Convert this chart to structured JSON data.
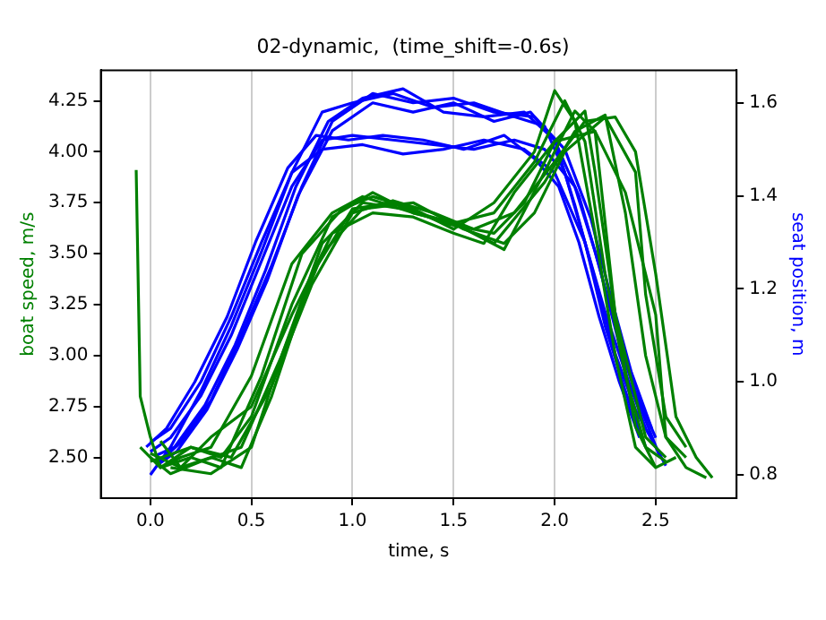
{
  "chart_data": {
    "type": "line",
    "title": "02-dynamic,  (time_shift=-0.6s)",
    "xlabel": "time, s",
    "ylabel": "boat speed, m/s",
    "y2label": "seat position, m",
    "xlim": [
      -0.245,
      2.9
    ],
    "xticks": [
      {
        "value": 0,
        "label": "0.0"
      },
      {
        "value": 0.5,
        "label": "0.5"
      },
      {
        "value": 1,
        "label": "1.0"
      },
      {
        "value": 1.5,
        "label": "1.5"
      },
      {
        "value": 2,
        "label": "2.0"
      },
      {
        "value": 2.5,
        "label": "2.5"
      }
    ],
    "ylim": [
      2.3,
      4.4
    ],
    "yticks": [
      {
        "value": 2.5,
        "label": "2.50"
      },
      {
        "value": 2.75,
        "label": "2.75"
      },
      {
        "value": 3,
        "label": "3.00"
      },
      {
        "value": 3.25,
        "label": "3.25"
      },
      {
        "value": 3.5,
        "label": "3.50"
      },
      {
        "value": 3.75,
        "label": "3.75"
      },
      {
        "value": 4,
        "label": "4.00"
      },
      {
        "value": 4.25,
        "label": "4.25"
      }
    ],
    "y2lim": [
      0.75,
      1.67
    ],
    "y2ticks": [
      {
        "value": 0.8,
        "label": "0.8"
      },
      {
        "value": 1,
        "label": "1.0"
      },
      {
        "value": 1.2,
        "label": "1.2"
      },
      {
        "value": 1.4,
        "label": "1.4"
      },
      {
        "value": 1.6,
        "label": "1.6"
      }
    ],
    "grid": "x",
    "legend": false,
    "marker": "none",
    "line_style": "solid",
    "series": [
      {
        "color": "#008000",
        "x": [
          -0.07,
          -0.05,
          0.0,
          0.05,
          0.15,
          0.3,
          0.5,
          0.7,
          0.9,
          1.05,
          1.3,
          1.5,
          1.7,
          1.9,
          2.05,
          2.15,
          2.25,
          2.35,
          2.45,
          2.55
        ],
        "values": [
          3.91,
          2.8,
          2.6,
          2.45,
          2.5,
          2.55,
          2.9,
          3.45,
          3.7,
          3.78,
          3.7,
          3.65,
          3.7,
          3.95,
          4.25,
          4.05,
          3.4,
          2.9,
          2.55,
          2.48
        ]
      },
      {
        "color": "#008000",
        "x": [
          -0.05,
          0.05,
          0.2,
          0.35,
          0.55,
          0.75,
          0.95,
          1.1,
          1.3,
          1.5,
          1.7,
          1.9,
          2.0,
          2.1,
          2.2,
          2.3,
          2.4,
          2.5,
          2.6
        ],
        "values": [
          2.55,
          2.45,
          2.5,
          2.45,
          2.9,
          3.5,
          3.72,
          3.78,
          3.72,
          3.62,
          3.75,
          4.0,
          4.3,
          4.15,
          3.6,
          3.0,
          2.55,
          2.45,
          2.5
        ]
      },
      {
        "color": "#008000",
        "x": [
          0.0,
          0.1,
          0.25,
          0.45,
          0.65,
          0.85,
          1.05,
          1.25,
          1.5,
          1.7,
          1.95,
          2.1,
          2.25,
          2.35,
          2.45,
          2.55,
          2.65,
          2.75
        ],
        "values": [
          2.5,
          2.42,
          2.48,
          2.55,
          3.0,
          3.55,
          3.75,
          3.72,
          3.65,
          3.55,
          3.85,
          4.1,
          4.18,
          3.7,
          3.0,
          2.6,
          2.45,
          2.4
        ]
      },
      {
        "color": "#008000",
        "x": [
          0.05,
          0.2,
          0.4,
          0.6,
          0.8,
          1.0,
          1.2,
          1.4,
          1.6,
          1.8,
          2.0,
          2.15,
          2.3,
          2.4,
          2.5,
          2.6,
          2.7,
          2.78
        ],
        "values": [
          2.45,
          2.55,
          2.5,
          2.85,
          3.35,
          3.7,
          3.76,
          3.7,
          3.62,
          3.7,
          3.95,
          4.15,
          4.17,
          4.0,
          3.4,
          2.7,
          2.5,
          2.4
        ]
      },
      {
        "color": "#008000",
        "x": [
          0.0,
          0.15,
          0.3,
          0.5,
          0.7,
          0.9,
          1.1,
          1.3,
          1.5,
          1.65,
          1.8,
          2.0,
          2.2,
          2.35,
          2.5,
          2.55,
          2.65
        ],
        "values": [
          2.52,
          2.45,
          2.6,
          2.75,
          3.2,
          3.6,
          3.7,
          3.68,
          3.6,
          3.55,
          3.8,
          4.05,
          4.1,
          3.8,
          3.2,
          2.6,
          2.5
        ]
      },
      {
        "color": "#008000",
        "x": [
          0.1,
          0.3,
          0.5,
          0.65,
          0.85,
          1.05,
          1.3,
          1.55,
          1.75,
          1.9,
          2.05,
          2.25,
          2.4,
          2.45,
          2.55,
          2.65
        ],
        "values": [
          2.45,
          2.42,
          2.55,
          3.0,
          3.5,
          3.72,
          3.75,
          3.62,
          3.55,
          3.7,
          4.0,
          4.17,
          3.9,
          3.3,
          2.7,
          2.55
        ]
      },
      {
        "color": "#008000",
        "x": [
          0.0,
          0.2,
          0.35,
          0.5,
          0.7,
          0.9,
          1.1,
          1.3,
          1.5,
          1.75,
          1.95,
          2.1,
          2.2,
          2.3,
          2.4,
          2.5
        ],
        "values": [
          2.48,
          2.55,
          2.5,
          2.7,
          3.25,
          3.68,
          3.8,
          3.7,
          3.65,
          3.52,
          3.9,
          4.2,
          4.1,
          3.2,
          2.65,
          2.45
        ]
      },
      {
        "color": "#008000",
        "x": [
          0.05,
          0.15,
          0.3,
          0.45,
          0.6,
          0.8,
          1.0,
          1.2,
          1.45,
          1.7,
          1.85,
          2.0,
          2.15,
          2.2,
          2.3,
          2.45,
          2.55
        ],
        "values": [
          2.58,
          2.45,
          2.5,
          2.45,
          2.8,
          3.4,
          3.72,
          3.75,
          3.65,
          3.6,
          3.75,
          4.05,
          4.2,
          3.9,
          3.2,
          2.6,
          2.5
        ]
      },
      {
        "color": "#0000ff",
        "axis": "y2",
        "x": [
          0.0,
          0.1,
          0.25,
          0.4,
          0.55,
          0.7,
          0.85,
          1.0,
          1.2,
          1.4,
          1.6,
          1.8,
          1.95,
          2.05,
          2.15,
          2.25,
          2.35,
          2.45
        ],
        "values": [
          0.8,
          0.86,
          0.98,
          1.12,
          1.28,
          1.45,
          1.58,
          1.6,
          1.62,
          1.59,
          1.6,
          1.57,
          1.55,
          1.45,
          1.3,
          1.12,
          0.98,
          0.86
        ]
      },
      {
        "color": "#0000ff",
        "axis": "y2",
        "x": [
          0.0,
          0.1,
          0.25,
          0.4,
          0.55,
          0.7,
          0.85,
          1.0,
          1.2,
          1.4,
          1.6,
          1.8,
          1.95,
          2.1,
          2.2,
          2.3,
          2.4,
          2.5
        ],
        "values": [
          0.85,
          0.88,
          0.97,
          1.1,
          1.26,
          1.42,
          1.52,
          1.53,
          1.52,
          1.51,
          1.5,
          1.52,
          1.5,
          1.42,
          1.28,
          1.12,
          0.98,
          0.88
        ]
      },
      {
        "color": "#0000ff",
        "axis": "y2",
        "x": [
          0.02,
          0.12,
          0.27,
          0.42,
          0.57,
          0.72,
          0.88,
          1.05,
          1.25,
          1.45,
          1.65,
          1.85,
          2.0,
          2.12,
          2.22,
          2.32,
          2.42,
          2.52
        ],
        "values": [
          0.84,
          0.86,
          0.95,
          1.08,
          1.24,
          1.42,
          1.56,
          1.61,
          1.63,
          1.58,
          1.57,
          1.58,
          1.52,
          1.4,
          1.25,
          1.08,
          0.95,
          0.84
        ]
      },
      {
        "color": "#0000ff",
        "axis": "y2",
        "x": [
          -0.02,
          0.08,
          0.22,
          0.38,
          0.52,
          0.68,
          0.82,
          0.98,
          1.15,
          1.35,
          1.55,
          1.75,
          1.9,
          2.02,
          2.12,
          2.22,
          2.32,
          2.42
        ],
        "values": [
          0.86,
          0.9,
          1.0,
          1.14,
          1.3,
          1.46,
          1.53,
          1.52,
          1.53,
          1.52,
          1.5,
          1.53,
          1.48,
          1.42,
          1.3,
          1.14,
          1.0,
          0.88
        ]
      },
      {
        "color": "#0000ff",
        "axis": "y2",
        "x": [
          0.03,
          0.13,
          0.28,
          0.43,
          0.58,
          0.73,
          0.9,
          1.1,
          1.3,
          1.5,
          1.7,
          1.88,
          2.0,
          2.1,
          2.2,
          2.3,
          2.4,
          2.55
        ],
        "values": [
          0.82,
          0.85,
          0.94,
          1.07,
          1.22,
          1.4,
          1.54,
          1.6,
          1.58,
          1.6,
          1.56,
          1.58,
          1.52,
          1.38,
          1.22,
          1.06,
          0.94,
          0.82
        ]
      },
      {
        "color": "#0000ff",
        "axis": "y2",
        "x": [
          0.0,
          0.1,
          0.25,
          0.4,
          0.55,
          0.7,
          0.85,
          1.05,
          1.25,
          1.45,
          1.65,
          1.85,
          2.0,
          2.15,
          2.25,
          2.35,
          2.45
        ],
        "values": [
          0.87,
          0.9,
          1.0,
          1.14,
          1.3,
          1.45,
          1.5,
          1.51,
          1.49,
          1.5,
          1.52,
          1.5,
          1.45,
          1.3,
          1.15,
          1.02,
          0.9
        ]
      },
      {
        "color": "#0000ff",
        "axis": "y2",
        "x": [
          0.05,
          0.15,
          0.3,
          0.45,
          0.6,
          0.75,
          0.9,
          1.1,
          1.3,
          1.5,
          1.7,
          1.9,
          2.05,
          2.18,
          2.28,
          2.38,
          2.48
        ],
        "values": [
          0.83,
          0.87,
          0.96,
          1.1,
          1.25,
          1.42,
          1.56,
          1.62,
          1.6,
          1.61,
          1.58,
          1.57,
          1.5,
          1.35,
          1.18,
          1.02,
          0.9
        ]
      }
    ]
  }
}
